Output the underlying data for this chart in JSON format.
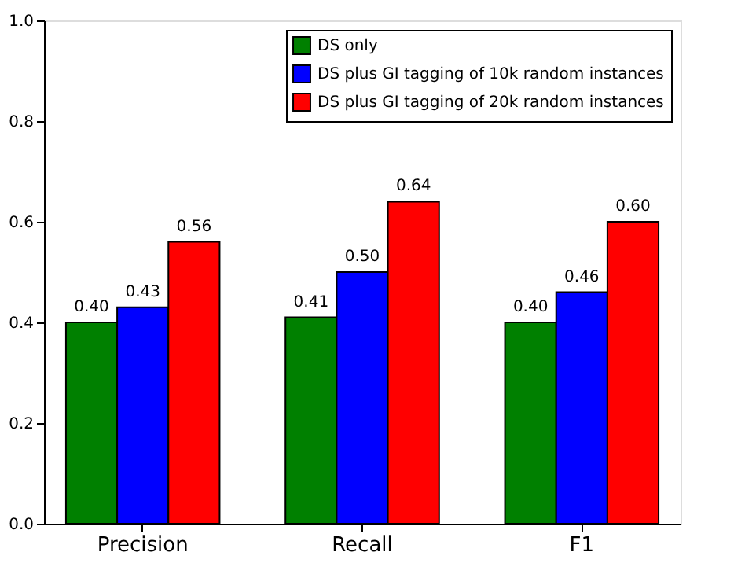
{
  "chart_data": {
    "type": "bar",
    "categories": [
      "Precision",
      "Recall",
      "F1"
    ],
    "series": [
      {
        "name": "DS only",
        "color": "#008000",
        "values": [
          0.4,
          0.41,
          0.4
        ],
        "value_labels": [
          "0.40",
          "0.41",
          "0.40"
        ]
      },
      {
        "name": "DS plus GI tagging of 10k random instances",
        "color": "#0000ff",
        "values": [
          0.43,
          0.5,
          0.46
        ],
        "value_labels": [
          "0.43",
          "0.50",
          "0.46"
        ]
      },
      {
        "name": "DS plus GI tagging of 20k random instances",
        "color": "#ff0000",
        "values": [
          0.56,
          0.64,
          0.6
        ],
        "value_labels": [
          "0.56",
          "0.64",
          "0.60"
        ]
      }
    ],
    "ylim": [
      0,
      1
    ],
    "yticks": [
      {
        "value": 0,
        "label": "0.0"
      },
      0.2,
      0.4,
      0.6,
      0.8,
      {
        "value": 1,
        "label": "1.0"
      }
    ],
    "grid": false,
    "legend": "top right"
  }
}
